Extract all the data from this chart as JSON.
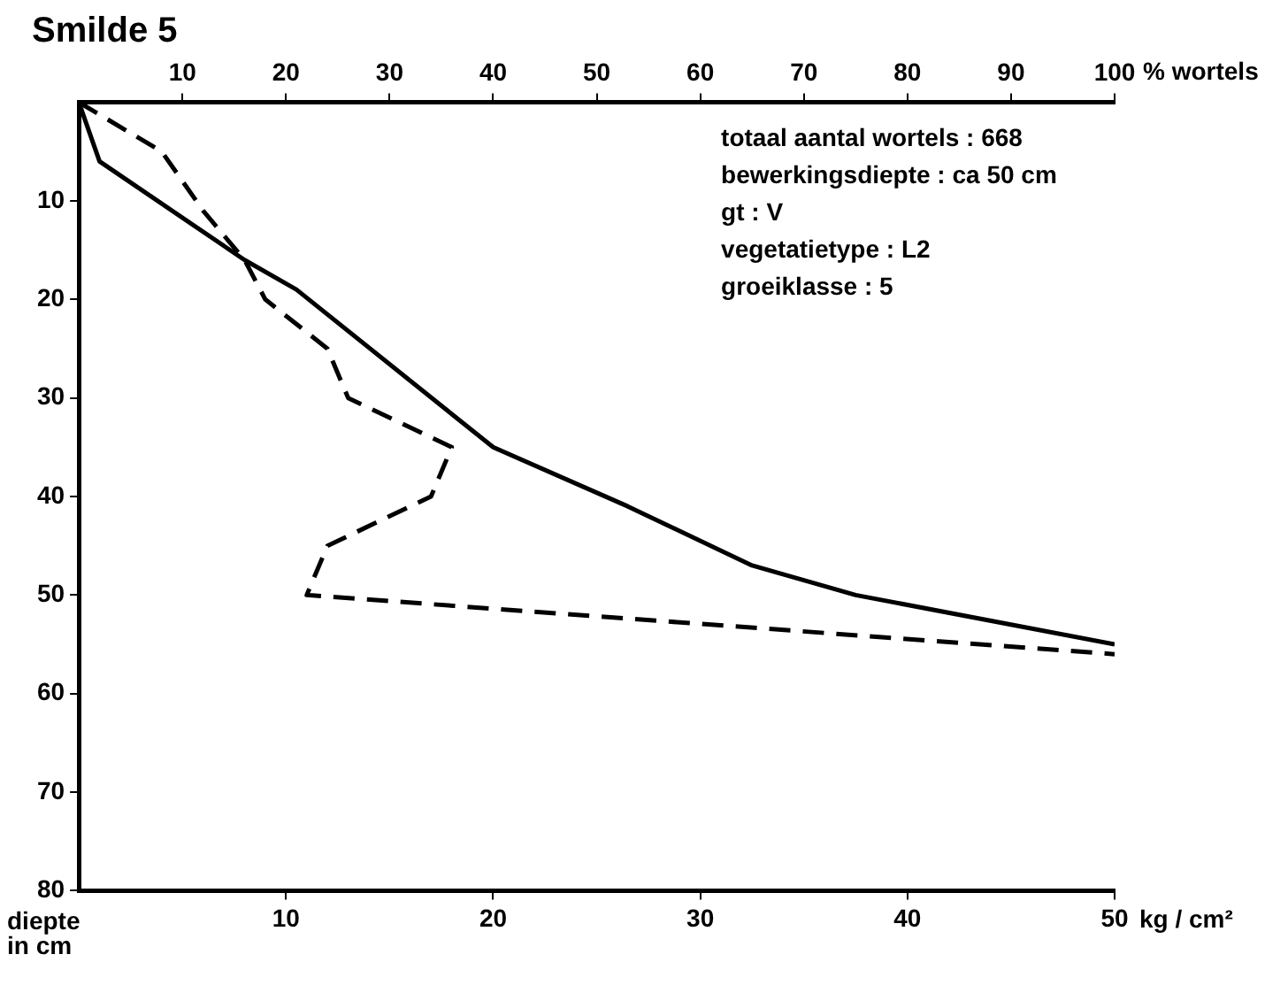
{
  "chart_data": {
    "type": "line",
    "title": "Smilde 5",
    "xlabel": "kg / cm²",
    "x2label": "% wortels",
    "ylabel": "diepte in cm",
    "xlim": [
      0,
      50
    ],
    "xticks": [
      10,
      20,
      30,
      40,
      50
    ],
    "x2lim": [
      0,
      100
    ],
    "x2ticks": [
      10,
      20,
      30,
      40,
      50,
      60,
      70,
      80,
      90,
      100
    ],
    "ylim": [
      80,
      0
    ],
    "yticks": [
      10,
      20,
      30,
      40,
      50,
      60,
      70,
      80
    ],
    "grid": false,
    "legend": false,
    "marker": "none",
    "annotations": [
      "totaal aantal wortels : 668",
      "bewerkingsdiepte : ca 50 cm",
      "gt : V",
      "vegetatietype : L2",
      "groeiklasse : 5"
    ],
    "series": [
      {
        "color": "#000000",
        "axis": "x2",
        "line_style": "solid",
        "x": [
          0,
          2,
          16,
          21,
          40,
          53,
          65,
          75,
          100
        ],
        "values": [
          0,
          6,
          16,
          19,
          35,
          41,
          47,
          50,
          55
        ]
      },
      {
        "color": "#000000",
        "line_style": "dashed",
        "x": [
          0,
          4,
          6,
          8,
          9,
          12,
          13,
          18,
          17,
          12,
          11,
          50
        ],
        "values": [
          0,
          5,
          11,
          16,
          20,
          25,
          30,
          35,
          40,
          45,
          50,
          56
        ]
      }
    ]
  }
}
